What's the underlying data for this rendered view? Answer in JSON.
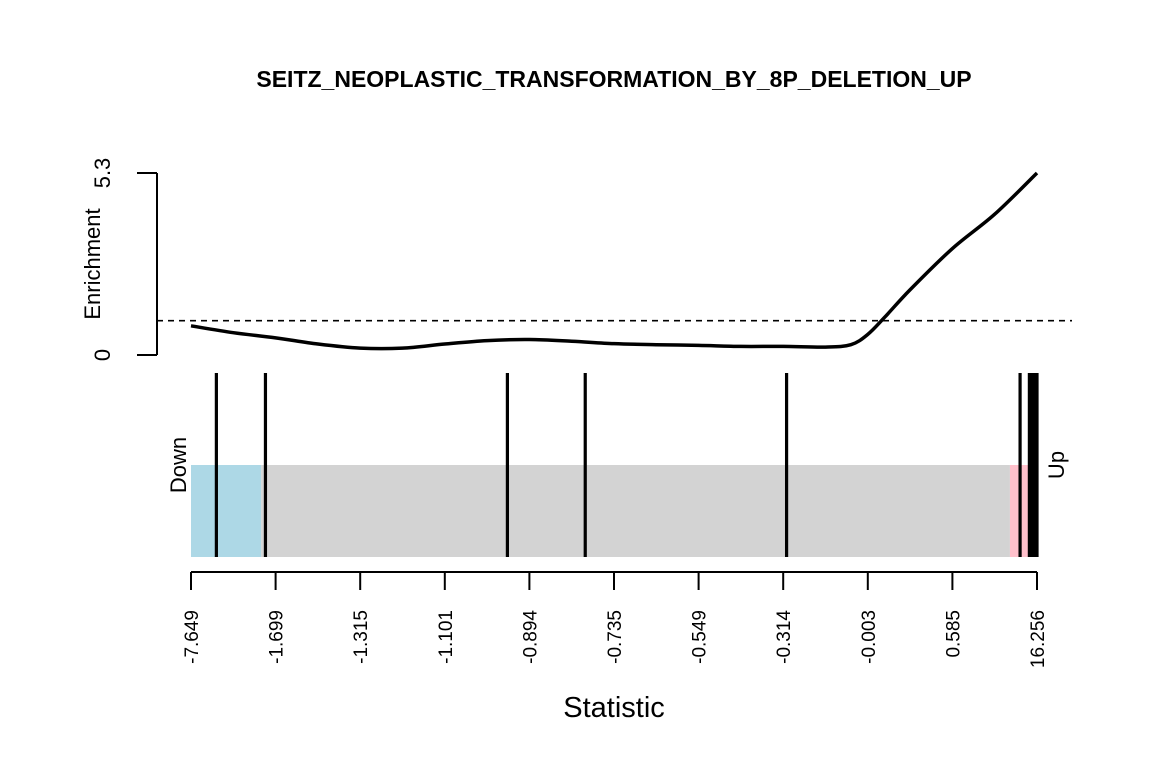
{
  "chart_data": {
    "type": "line",
    "title": "SEITZ_NEOPLASTIC_TRANSFORMATION_BY_8P_DELETION_UP",
    "xlabel": "Statistic",
    "ylabel": "Enrichment",
    "ylim": [
      0,
      5.3
    ],
    "y_ticks": [
      "0",
      "5.3"
    ],
    "reference_line": 1.0,
    "x_tick_labels": [
      "-7.649",
      "-1.699",
      "-1.315",
      "-1.101",
      "-0.894",
      "-0.735",
      "-0.549",
      "-0.314",
      "-0.003",
      "0.585",
      "16.256"
    ],
    "x_range": [
      0,
      1
    ],
    "enrichment_curve": {
      "x": [
        0.0,
        0.05,
        0.1,
        0.15,
        0.2,
        0.25,
        0.3,
        0.35,
        0.4,
        0.45,
        0.5,
        0.55,
        0.6,
        0.65,
        0.7,
        0.75,
        0.78,
        0.8,
        0.82,
        0.85,
        0.9,
        0.95,
        1.0
      ],
      "y": [
        0.85,
        0.65,
        0.5,
        0.32,
        0.2,
        0.2,
        0.32,
        0.42,
        0.45,
        0.4,
        0.33,
        0.3,
        0.28,
        0.25,
        0.25,
        0.23,
        0.3,
        0.6,
        1.1,
        1.9,
        3.1,
        4.1,
        5.3
      ]
    },
    "gene_positions": [
      0.03,
      0.088,
      0.374,
      0.466,
      0.704,
      0.98,
      0.991,
      0.994,
      0.997,
      1.0
    ],
    "bar_regions": [
      {
        "name": "down",
        "start": 0.0,
        "end": 0.083,
        "color": "#add8e6"
      },
      {
        "name": "middle",
        "start": 0.083,
        "end": 0.968,
        "color": "#d3d3d3"
      },
      {
        "name": "up",
        "start": 0.968,
        "end": 1.0,
        "color": "#ffc0cb"
      }
    ],
    "bar_labels": {
      "down": "Down",
      "up": "Up"
    }
  }
}
